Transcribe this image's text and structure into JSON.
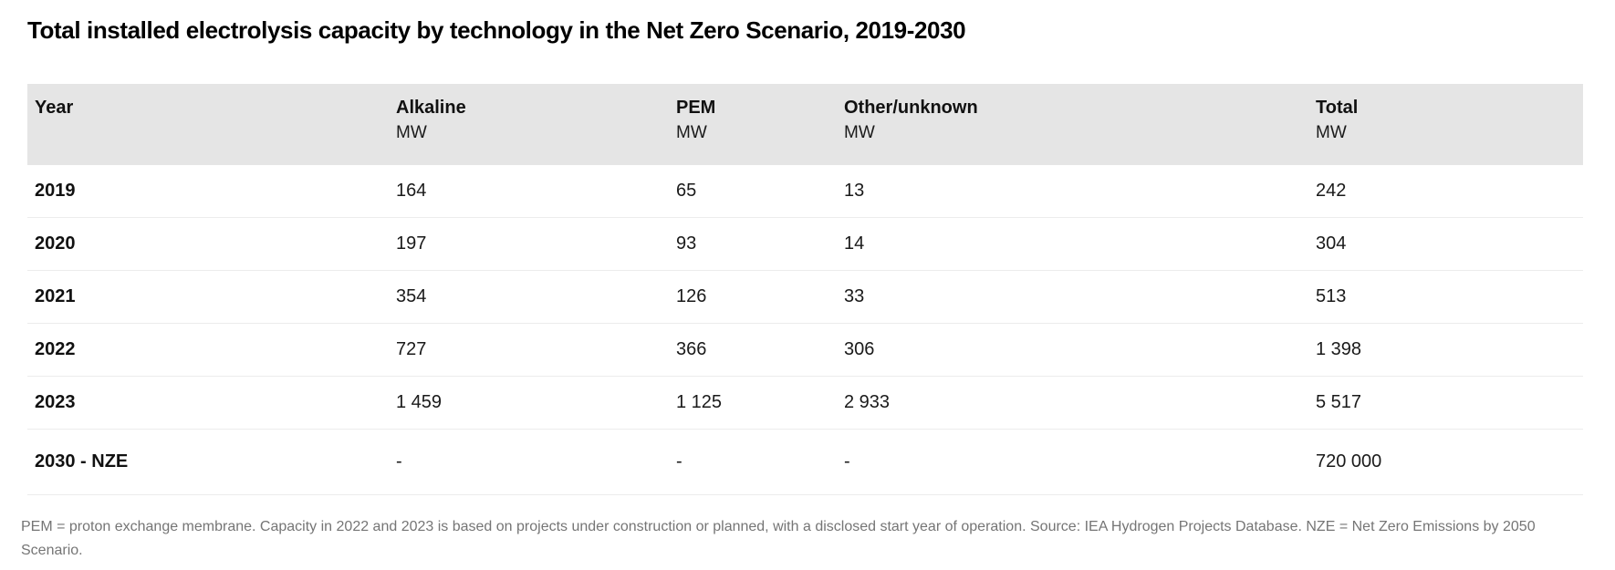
{
  "title": "Total installed electrolysis capacity by technology in the Net Zero Scenario, 2019-2030",
  "table": {
    "columns": [
      {
        "label": "Year",
        "unit": ""
      },
      {
        "label": "Alkaline",
        "unit": "MW"
      },
      {
        "label": "PEM",
        "unit": "MW"
      },
      {
        "label": "Other/unknown",
        "unit": "MW"
      },
      {
        "label": "Total",
        "unit": "MW"
      }
    ],
    "rows": [
      {
        "year": "2019",
        "alkaline": "164",
        "pem": "65",
        "other": "13",
        "total": "242"
      },
      {
        "year": "2020",
        "alkaline": "197",
        "pem": "93",
        "other": "14",
        "total": "304"
      },
      {
        "year": "2021",
        "alkaline": "354",
        "pem": "126",
        "other": "33",
        "total": "513"
      },
      {
        "year": "2022",
        "alkaline": "727",
        "pem": "366",
        "other": "306",
        "total": "1 398"
      },
      {
        "year": "2023",
        "alkaline": "1 459",
        "pem": "1 125",
        "other": "2 933",
        "total": "5 517"
      },
      {
        "year": "2030 - NZE",
        "alkaline": "-",
        "pem": "-",
        "other": "-",
        "total": "720 000"
      }
    ]
  },
  "footnote": "PEM = proton exchange membrane. Capacity in 2022 and 2023 is based on projects under construction or planned, with a disclosed start year of operation. Source: IEA Hydrogen Projects Database. NZE = Net Zero Emissions by 2050 Scenario.",
  "colors": {
    "background": "#ffffff",
    "header_bg": "#e5e5e5",
    "row_border": "#ececec",
    "text": "#1a1a1a",
    "footnote": "#757575"
  },
  "chart_data": {
    "type": "table",
    "title": "Total installed electrolysis capacity by technology in the Net Zero Scenario, 2019-2030",
    "categories": [
      "2019",
      "2020",
      "2021",
      "2022",
      "2023",
      "2030 - NZE"
    ],
    "series": [
      {
        "name": "Alkaline (MW)",
        "values": [
          164,
          197,
          354,
          727,
          1459,
          null
        ]
      },
      {
        "name": "PEM (MW)",
        "values": [
          65,
          93,
          126,
          366,
          1125,
          null
        ]
      },
      {
        "name": "Other/unknown (MW)",
        "values": [
          13,
          14,
          33,
          306,
          2933,
          null
        ]
      },
      {
        "name": "Total (MW)",
        "values": [
          242,
          304,
          513,
          1398,
          5517,
          720000
        ]
      }
    ],
    "unit": "MW"
  }
}
